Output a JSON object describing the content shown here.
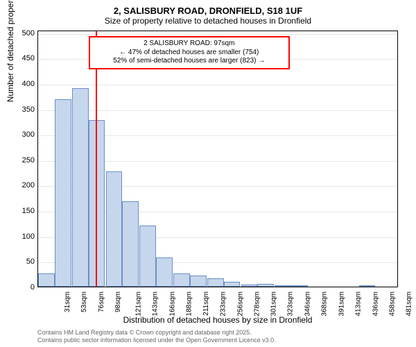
{
  "title": "2, SALISBURY ROAD, DRONFIELD, S18 1UF",
  "subtitle": "Size of property relative to detached houses in Dronfield",
  "ylabel": "Number of detached properties",
  "xlabel": "Distribution of detached houses by size in Dronfield",
  "chart": {
    "type": "histogram",
    "background_color": "#ffffff",
    "grid_color": "#e6e6e6",
    "border_color": "#000000",
    "bar_fill": "#c6d6ec",
    "bar_border": "#6a8fc7",
    "marker_color": "#ff0000",
    "marker_x": 97,
    "xlim": [
      20,
      500
    ],
    "ylim": [
      0,
      505
    ],
    "yticks": [
      0,
      50,
      100,
      150,
      200,
      250,
      300,
      350,
      400,
      450,
      500
    ],
    "xticks": [
      31,
      53,
      76,
      98,
      121,
      143,
      166,
      188,
      211,
      233,
      256,
      278,
      301,
      323,
      346,
      368,
      391,
      413,
      436,
      458,
      481
    ],
    "xtick_suffix": "sqm",
    "bin_width": 22,
    "bins": [
      {
        "start": 20,
        "count": 26
      },
      {
        "start": 42,
        "count": 368
      },
      {
        "start": 65,
        "count": 390
      },
      {
        "start": 87,
        "count": 328
      },
      {
        "start": 110,
        "count": 226
      },
      {
        "start": 132,
        "count": 168
      },
      {
        "start": 155,
        "count": 120
      },
      {
        "start": 177,
        "count": 58
      },
      {
        "start": 200,
        "count": 26
      },
      {
        "start": 222,
        "count": 22
      },
      {
        "start": 245,
        "count": 16
      },
      {
        "start": 267,
        "count": 10
      },
      {
        "start": 290,
        "count": 4
      },
      {
        "start": 312,
        "count": 5
      },
      {
        "start": 335,
        "count": 2
      },
      {
        "start": 357,
        "count": 3
      },
      {
        "start": 380,
        "count": 1
      },
      {
        "start": 402,
        "count": 1
      },
      {
        "start": 425,
        "count": 0
      },
      {
        "start": 447,
        "count": 2
      },
      {
        "start": 470,
        "count": 0
      }
    ]
  },
  "annotation": {
    "line1": "2 SALISBURY ROAD: 97sqm",
    "line2": "← 47% of detached houses are smaller (754)",
    "line3": "52% of semi-detached houses are larger (823) →",
    "border_color": "#ff0000",
    "left_data": 87,
    "top_data": 495,
    "width_data": 268
  },
  "footer": {
    "line1": "Contains HM Land Registry data © Crown copyright and database right 2025.",
    "line2": "Contains public sector information licensed under the Open Government Licence v3.0."
  },
  "fontsize": {
    "title": 13,
    "subtitle": 12,
    "axis_label": 12,
    "tick": 11,
    "xtick": 10,
    "annotation": 10,
    "footer": 9
  }
}
